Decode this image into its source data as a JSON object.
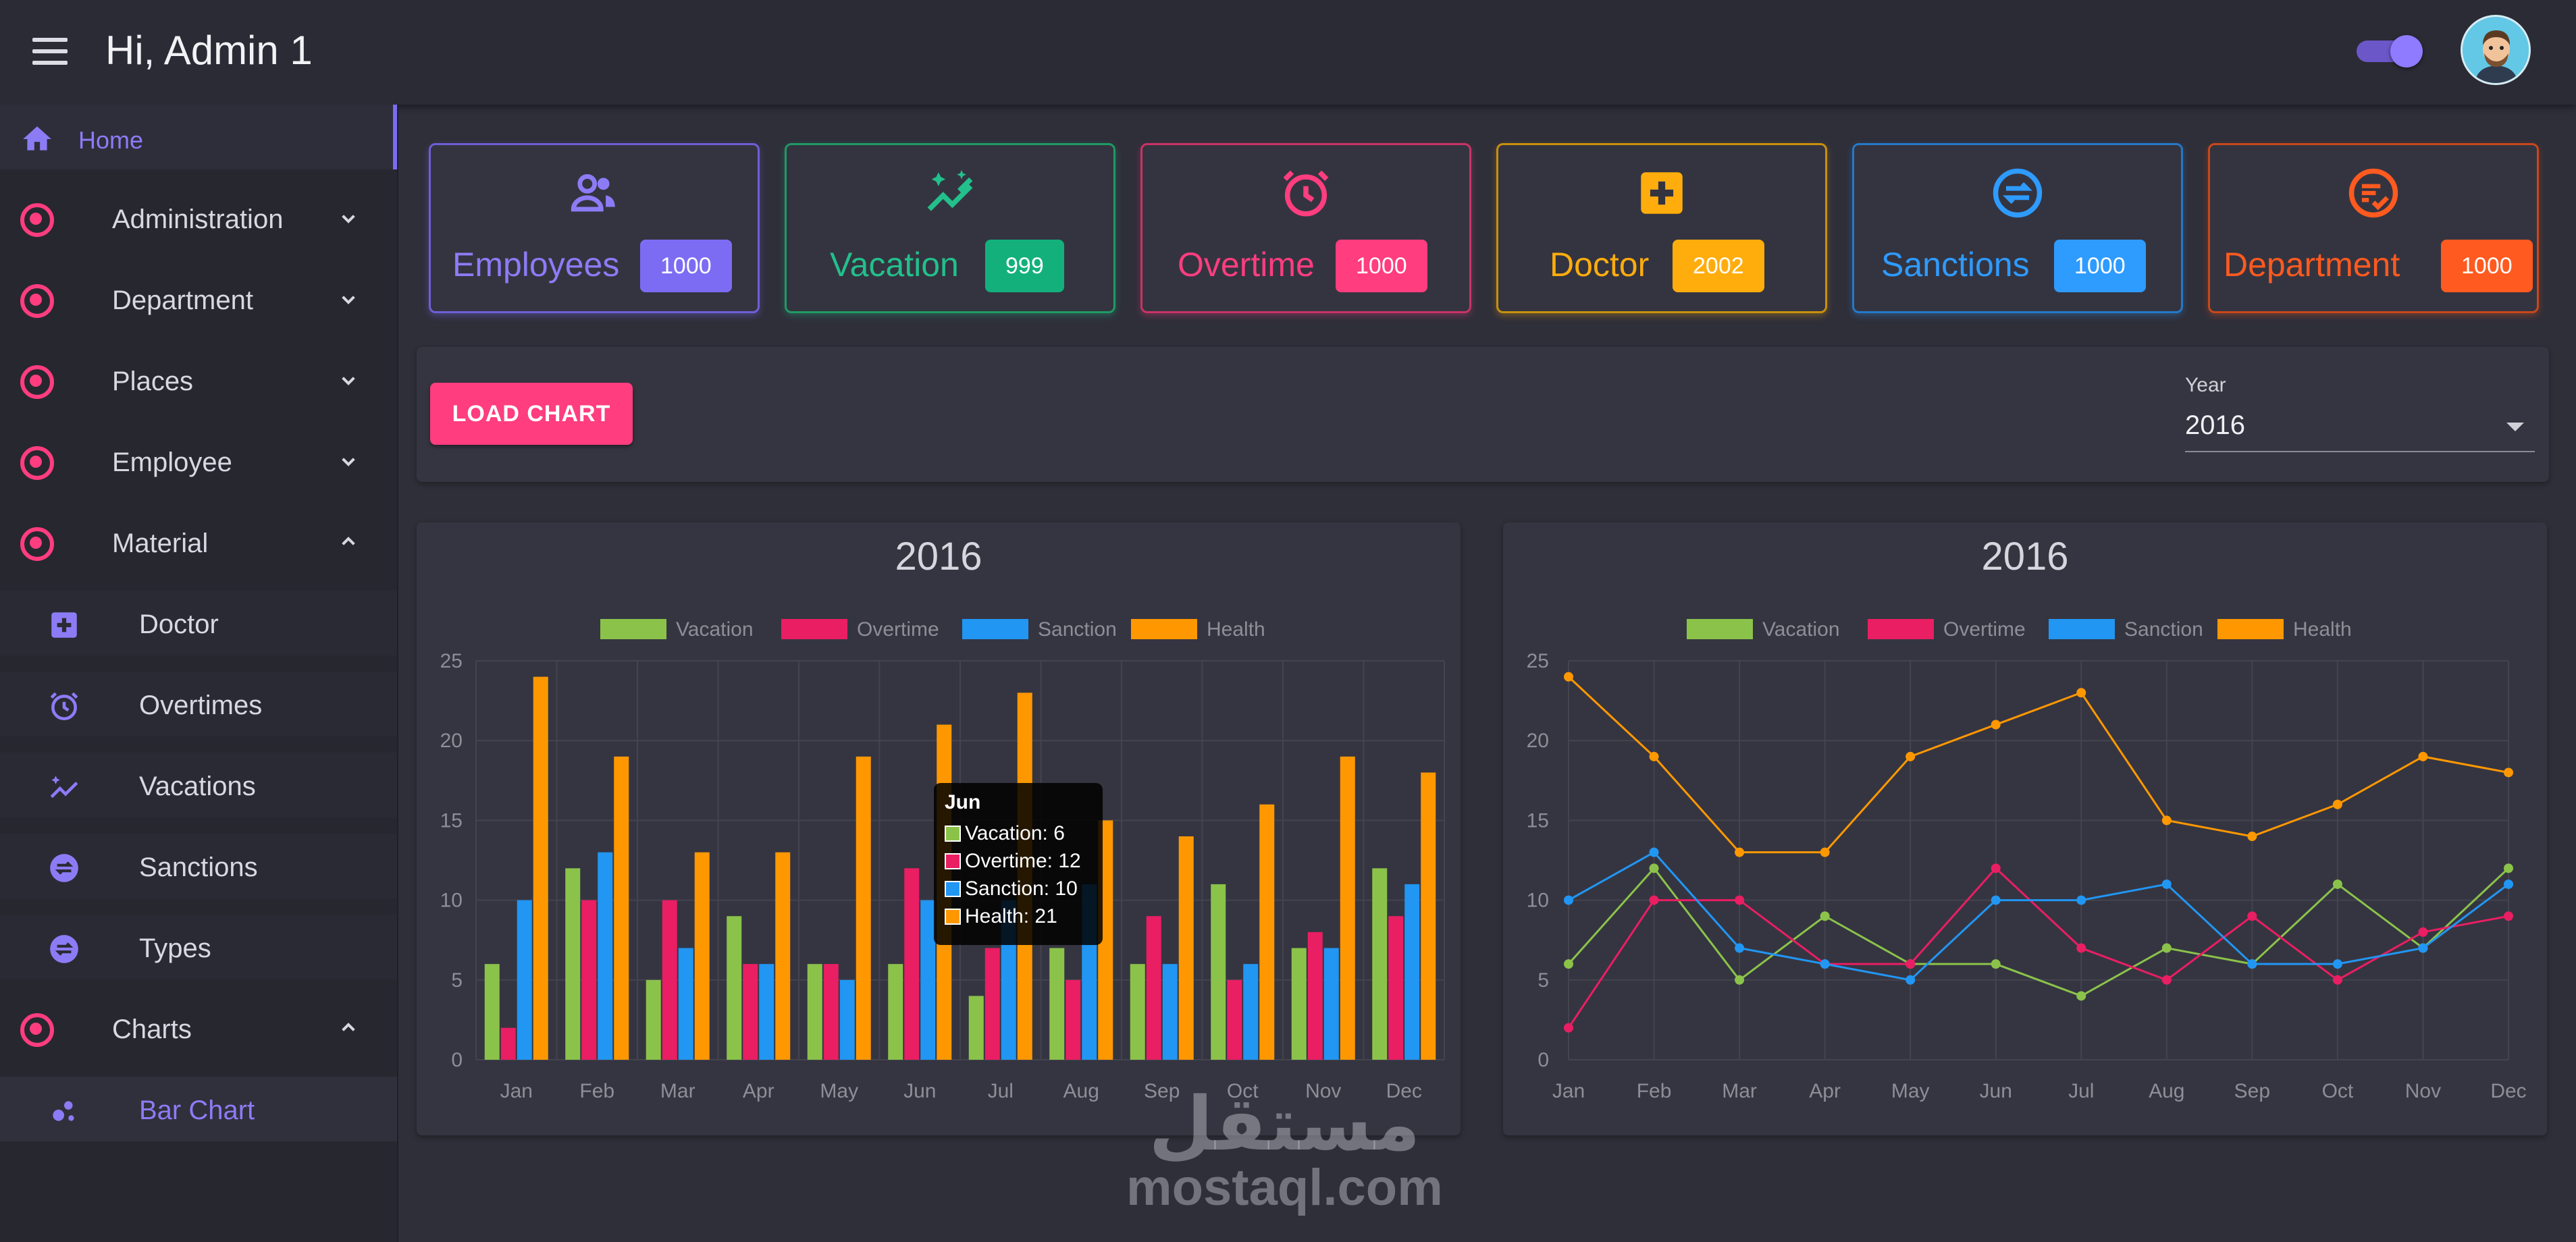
{
  "header": {
    "greeting": "Hi, Admin 1"
  },
  "sidebar": {
    "items": [
      {
        "label": "Home"
      },
      {
        "label": "Administration"
      },
      {
        "label": "Department"
      },
      {
        "label": "Places"
      },
      {
        "label": "Employee"
      },
      {
        "label": "Material"
      },
      {
        "label": "Doctor"
      },
      {
        "label": "Overtimes"
      },
      {
        "label": "Vacations"
      },
      {
        "label": "Sanctions"
      },
      {
        "label": "Types"
      },
      {
        "label": "Charts"
      },
      {
        "label": "Bar Chart"
      }
    ]
  },
  "cards": [
    {
      "name": "Employees",
      "count": "1000",
      "color": "#8b7cf6",
      "badge": "#7c6cf3"
    },
    {
      "name": "Vacation",
      "count": "999",
      "color": "#22c08b",
      "badge": "#13b07c"
    },
    {
      "name": "Overtime",
      "count": "1000",
      "color": "#ff3d7f",
      "badge": "#ff3d7f"
    },
    {
      "name": "Doctor",
      "count": "2002",
      "color": "#ffad0d",
      "badge": "#ffad0d"
    },
    {
      "name": "Sanctions",
      "count": "1000",
      "color": "#2e9bff",
      "badge": "#2e9bff"
    },
    {
      "name": "Department",
      "count": "1000",
      "color": "#ff5a1f",
      "badge": "#ff5a1f"
    }
  ],
  "toolbar": {
    "load_label": "LOAD CHART",
    "year_label": "Year",
    "year_value": "2016"
  },
  "tooltip": {
    "title": "Jun",
    "rows": [
      "Vacation: 6",
      "Overtime: 12",
      "Sanction: 10",
      "Health: 21"
    ]
  },
  "watermark": {
    "arabic": "مستقل",
    "latin": "mostaql.com"
  },
  "colors": {
    "vacation": "#8bc34a",
    "overtime": "#e91e63",
    "sanction": "#2196f3",
    "health": "#ff9800"
  },
  "chart_data": [
    {
      "type": "bar",
      "title": "2016",
      "categories": [
        "Jan",
        "Feb",
        "Mar",
        "Apr",
        "May",
        "Jun",
        "Jul",
        "Aug",
        "Sep",
        "Oct",
        "Nov",
        "Dec"
      ],
      "ylim": [
        0,
        25
      ],
      "yticks": [
        0,
        5,
        10,
        15,
        20,
        25
      ],
      "grid": true,
      "legend_position": "top",
      "series": [
        {
          "name": "Vacation",
          "values": [
            6,
            12,
            5,
            9,
            6,
            6,
            4,
            7,
            6,
            11,
            7,
            12
          ]
        },
        {
          "name": "Overtime",
          "values": [
            2,
            10,
            10,
            6,
            6,
            12,
            7,
            5,
            9,
            5,
            8,
            9
          ]
        },
        {
          "name": "Sanction",
          "values": [
            10,
            13,
            7,
            6,
            5,
            10,
            10,
            11,
            6,
            6,
            7,
            11
          ]
        },
        {
          "name": "Health",
          "values": [
            24,
            19,
            13,
            13,
            19,
            21,
            23,
            15,
            14,
            16,
            19,
            18
          ]
        }
      ]
    },
    {
      "type": "line",
      "title": "2016",
      "categories": [
        "Jan",
        "Feb",
        "Mar",
        "Apr",
        "May",
        "Jun",
        "Jul",
        "Aug",
        "Sep",
        "Oct",
        "Nov",
        "Dec"
      ],
      "ylim": [
        0,
        25
      ],
      "yticks": [
        0,
        5,
        10,
        15,
        20,
        25
      ],
      "grid": true,
      "legend_position": "top",
      "series": [
        {
          "name": "Vacation",
          "values": [
            6,
            12,
            5,
            9,
            6,
            6,
            4,
            7,
            6,
            11,
            7,
            12
          ]
        },
        {
          "name": "Overtime",
          "values": [
            2,
            10,
            10,
            6,
            6,
            12,
            7,
            5,
            9,
            5,
            8,
            9
          ]
        },
        {
          "name": "Sanction",
          "values": [
            10,
            13,
            7,
            6,
            5,
            10,
            10,
            11,
            6,
            6,
            7,
            11
          ]
        },
        {
          "name": "Health",
          "values": [
            24,
            19,
            13,
            13,
            19,
            21,
            23,
            15,
            14,
            16,
            19,
            18
          ]
        }
      ]
    }
  ]
}
